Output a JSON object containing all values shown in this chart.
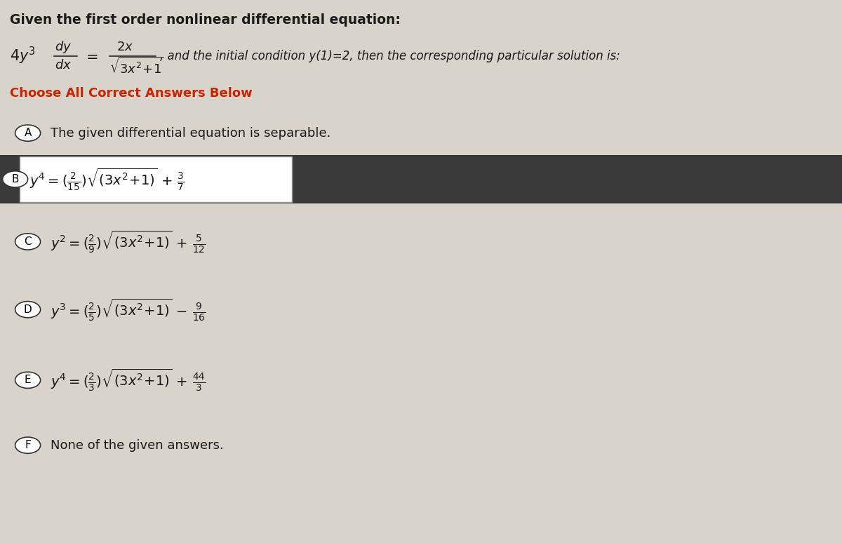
{
  "bg_color": "#d8d4cc",
  "text_color": "#1a1a1a",
  "choose_color": "#cc2200",
  "dark_band_color": "#3a3a3a",
  "white_box_color": "#ffffff",
  "title": "Given the first order nonlinear differential equation:",
  "choose_text": "Choose All Correct Answers Below",
  "cond_text": ", and the initial condition y(1)=2, then the corresponding particular solution is:",
  "optA_text": "The given differential equation is separable.",
  "optF_text": "None of the given answers.",
  "B_formula": "$y^4=(\\frac{2}{15})\\sqrt{(3x^2+1)} + \\frac{3}{7}$",
  "C_formula": "$y^2=(\\frac{2}{9})\\sqrt{(3x^2+1)} + \\frac{5}{12}$",
  "D_formula": "$y^3=(\\frac{2}{5})\\sqrt{(3x^2+1)} - \\frac{9}{16}$",
  "E_formula": "$y^4=(\\frac{2}{3})\\sqrt{(3x^2+1)} + \\frac{44}{3}$"
}
